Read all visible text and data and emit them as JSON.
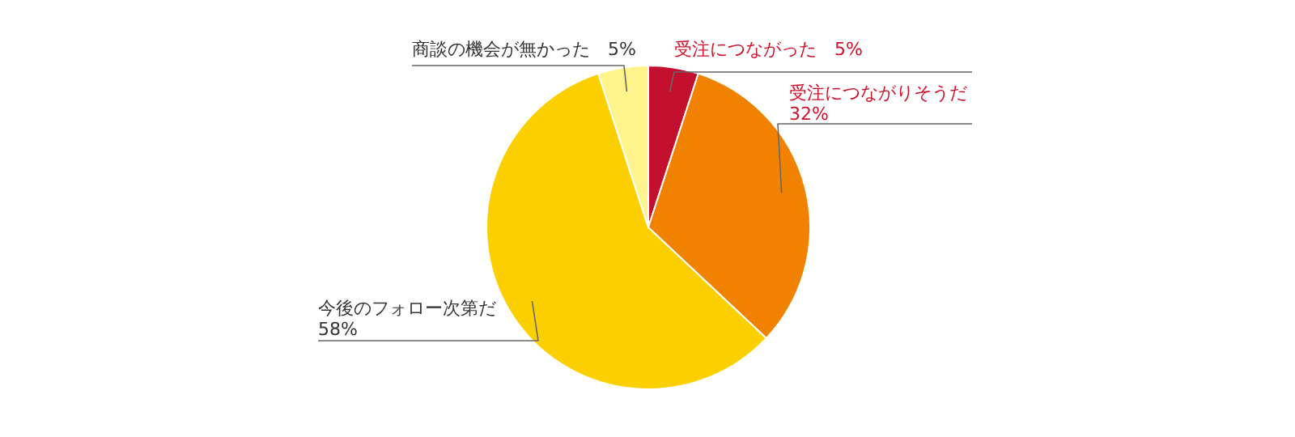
{
  "chart_data": {
    "type": "pie",
    "categories": [
      "受注につながった",
      "受注につながりそうだ",
      "今後のフォロー次第だ",
      "商談の機会が無かった"
    ],
    "values": [
      5,
      32,
      58,
      5
    ],
    "value_labels": [
      "5%",
      "32%",
      "58%",
      "5%"
    ],
    "colors": [
      "#c2102e",
      "#f08200",
      "#fcd000",
      "#fff48c"
    ]
  }
}
